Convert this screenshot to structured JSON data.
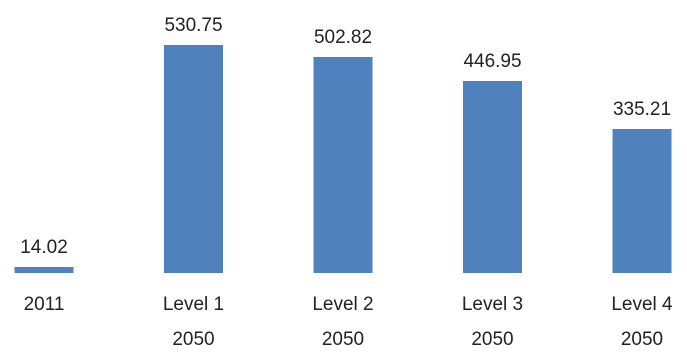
{
  "chart_data": {
    "type": "bar",
    "categories": [
      [
        "2011"
      ],
      [
        "Level 1",
        "2050"
      ],
      [
        "Level 2",
        "2050"
      ],
      [
        "Level 3",
        "2050"
      ],
      [
        "Level 4",
        "2050"
      ]
    ],
    "values": [
      14.02,
      530.75,
      502.82,
      446.95,
      335.21
    ],
    "data_labels": [
      "14.02",
      "530.75",
      "502.82",
      "446.95",
      "335.21"
    ],
    "ylim": [
      0,
      530.75
    ],
    "grid": false,
    "legend": "none",
    "bar_color": "#4F81BD"
  }
}
